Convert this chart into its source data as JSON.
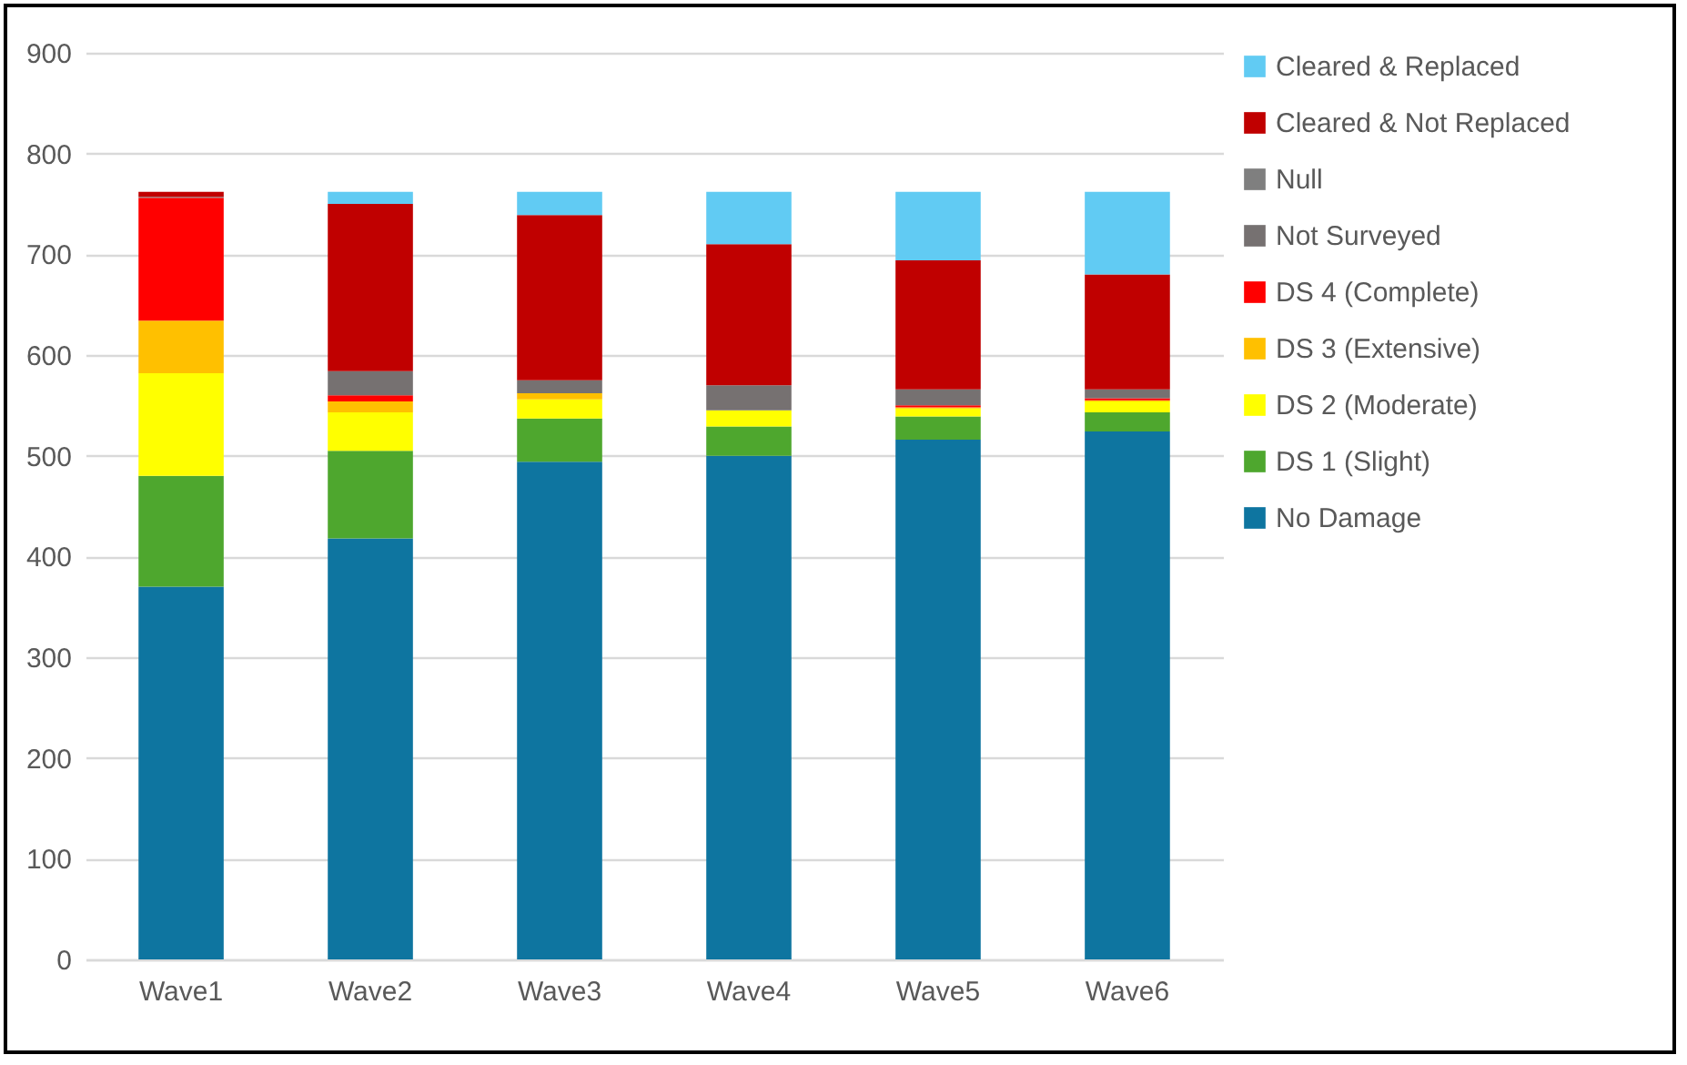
{
  "chart_data": {
    "type": "bar",
    "stacked": true,
    "categories": [
      "Wave1",
      "Wave2",
      "Wave3",
      "Wave4",
      "Wave5",
      "Wave6"
    ],
    "series": [
      {
        "name": "No Damage",
        "color": "#0e75a0",
        "values": [
          370,
          418,
          494,
          500,
          516,
          524
        ]
      },
      {
        "name": "DS 1 (Slight)",
        "color": "#4ea72e",
        "values": [
          110,
          87,
          43,
          29,
          23,
          19
        ]
      },
      {
        "name": "DS 2 (Moderate)",
        "color": "#ffff00",
        "values": [
          102,
          38,
          19,
          16,
          8,
          11
        ]
      },
      {
        "name": "DS 3 (Extensive)",
        "color": "#ffc000",
        "values": [
          52,
          11,
          6,
          0,
          1,
          1
        ]
      },
      {
        "name": "DS 4 (Complete)",
        "color": "#ff0000",
        "values": [
          122,
          6,
          0,
          0,
          2,
          2
        ]
      },
      {
        "name": "Not Surveyed",
        "color": "#767171",
        "values": [
          0,
          24,
          13,
          25,
          16,
          9
        ]
      },
      {
        "name": "Null",
        "color": "#7f7f7f",
        "values": [
          1,
          0,
          0,
          0,
          0,
          0
        ]
      },
      {
        "name": "Cleared & Not Replaced",
        "color": "#c00000",
        "values": [
          5,
          166,
          164,
          140,
          128,
          114
        ]
      },
      {
        "name": "Cleared & Replaced",
        "color": "#61cbf3",
        "values": [
          0,
          12,
          23,
          52,
          68,
          82
        ]
      }
    ],
    "ylim": [
      0,
      900
    ],
    "yticks": [
      0,
      100,
      200,
      300,
      400,
      500,
      600,
      700,
      800,
      900
    ],
    "grid": "y",
    "legend": "right"
  }
}
